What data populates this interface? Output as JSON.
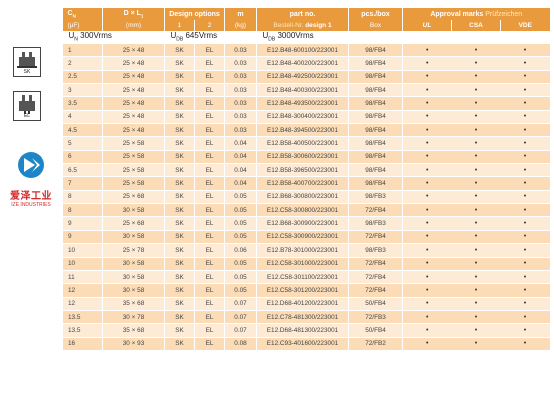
{
  "header": {
    "cn": "C",
    "cn_sub": "N",
    "cn_unit": "(μF)",
    "dl": "D × L",
    "dl_sub": "1",
    "dl_unit": "(mm)",
    "design_options": "Design options",
    "design_1": "1",
    "design_2": "2",
    "m": "m",
    "m_unit": "(kg)",
    "part_no": "part no.",
    "bestell": "Bestell-Nr.",
    "design_1_label": "design 1",
    "pcs_box": "pcs./box",
    "box": "Box",
    "approval": "Approval marks",
    "pruef": "Prüfzeichen",
    "mark1": "UL",
    "mark2": "CSA",
    "mark3": "VDE"
  },
  "voltage": {
    "un": "U",
    "un_sub": "N",
    "un_val": "300Vrms",
    "udb": "U",
    "udb_sub": "DB",
    "udb_val": "645Vrms",
    "udb2": "U",
    "udb2_sub": "DB",
    "udb2_val": "3000Vrms"
  },
  "rows": [
    {
      "cap": "1",
      "dim": "25 × 48",
      "d1": "SK",
      "d2": "EL",
      "m": "0.03",
      "pn": "E12.B48-600100/223001",
      "pcs": "98/FB4"
    },
    {
      "cap": "2",
      "dim": "25 × 48",
      "d1": "SK",
      "d2": "EL",
      "m": "0.03",
      "pn": "E12.B48-400200/223001",
      "pcs": "98/FB4"
    },
    {
      "cap": "2.5",
      "dim": "25 × 48",
      "d1": "SK",
      "d2": "EL",
      "m": "0.03",
      "pn": "E12.B48-492500/223001",
      "pcs": "98/FB4"
    },
    {
      "cap": "3",
      "dim": "25 × 48",
      "d1": "SK",
      "d2": "EL",
      "m": "0.03",
      "pn": "E12.B48-400300/223001",
      "pcs": "98/FB4"
    },
    {
      "cap": "3.5",
      "dim": "25 × 48",
      "d1": "SK",
      "d2": "EL",
      "m": "0.03",
      "pn": "E12.B48-493500/223001",
      "pcs": "98/FB4"
    },
    {
      "cap": "4",
      "dim": "25 × 48",
      "d1": "SK",
      "d2": "EL",
      "m": "0.03",
      "pn": "E12.B48-300400/223001",
      "pcs": "98/FB4"
    },
    {
      "cap": "4.5",
      "dim": "25 × 48",
      "d1": "SK",
      "d2": "EL",
      "m": "0.03",
      "pn": "E12.B48-394500/223001",
      "pcs": "98/FB4"
    },
    {
      "cap": "5",
      "dim": "25 × 58",
      "d1": "SK",
      "d2": "EL",
      "m": "0.04",
      "pn": "E12.B58-400500/223001",
      "pcs": "98/FB4"
    },
    {
      "cap": "6",
      "dim": "25 × 58",
      "d1": "SK",
      "d2": "EL",
      "m": "0.04",
      "pn": "E12.B58-300600/223001",
      "pcs": "98/FB4"
    },
    {
      "cap": "6.5",
      "dim": "25 × 58",
      "d1": "SK",
      "d2": "EL",
      "m": "0.04",
      "pn": "E12.B58-396500/223001",
      "pcs": "98/FB4"
    },
    {
      "cap": "7",
      "dim": "25 × 58",
      "d1": "SK",
      "d2": "EL",
      "m": "0.04",
      "pn": "E12.B58-400700/223001",
      "pcs": "98/FB4"
    },
    {
      "cap": "8",
      "dim": "25 × 68",
      "d1": "SK",
      "d2": "EL",
      "m": "0.05",
      "pn": "E12.B68-300800/223001",
      "pcs": "98/FB3"
    },
    {
      "cap": "8",
      "dim": "30 × 58",
      "d1": "SK",
      "d2": "EL",
      "m": "0.05",
      "pn": "E12.C58-300800/223001",
      "pcs": "72/FB4"
    },
    {
      "cap": "9",
      "dim": "25 × 68",
      "d1": "SK",
      "d2": "EL",
      "m": "0.05",
      "pn": "E12.B68-300900/223001",
      "pcs": "98/FB3"
    },
    {
      "cap": "9",
      "dim": "30 × 58",
      "d1": "SK",
      "d2": "EL",
      "m": "0.05",
      "pn": "E12.C58-300900/223001",
      "pcs": "72/FB4"
    },
    {
      "cap": "10",
      "dim": "25 × 78",
      "d1": "SK",
      "d2": "EL",
      "m": "0.06",
      "pn": "E12.B78-301000/223001",
      "pcs": "98/FB3"
    },
    {
      "cap": "10",
      "dim": "30 × 58",
      "d1": "SK",
      "d2": "EL",
      "m": "0.05",
      "pn": "E12.C58-301000/223001",
      "pcs": "72/FB4"
    },
    {
      "cap": "11",
      "dim": "30 × 58",
      "d1": "SK",
      "d2": "EL",
      "m": "0.05",
      "pn": "E12.C58-301100/223001",
      "pcs": "72/FB4"
    },
    {
      "cap": "12",
      "dim": "30 × 58",
      "d1": "SK",
      "d2": "EL",
      "m": "0.05",
      "pn": "E12.C58-301200/223001",
      "pcs": "72/FB4"
    },
    {
      "cap": "12",
      "dim": "35 × 68",
      "d1": "SK",
      "d2": "EL",
      "m": "0.07",
      "pn": "E12.D68-401200/223001",
      "pcs": "50/FB4"
    },
    {
      "cap": "13.5",
      "dim": "30 × 78",
      "d1": "SK",
      "d2": "EL",
      "m": "0.07",
      "pn": "E12.C78-481300/223001",
      "pcs": "72/FB3"
    },
    {
      "cap": "13.5",
      "dim": "35 × 68",
      "d1": "SK",
      "d2": "EL",
      "m": "0.07",
      "pn": "E12.D68-481300/223001",
      "pcs": "50/FB4"
    },
    {
      "cap": "16",
      "dim": "30 × 93",
      "d1": "SK",
      "d2": "EL",
      "m": "0.08",
      "pn": "E12.C93-401600/223001",
      "pcs": "72/FB2"
    }
  ],
  "dot": "•",
  "sidebar": {
    "sk_label": "SK",
    "el_label": "EL",
    "logo_cn": "爱泽工业",
    "logo_en": "IZE INDUSTRIES"
  },
  "colors": {
    "header_orange": "#e99a3c",
    "row_odd": "#fbdcb6",
    "row_even": "#fdebd6",
    "logo_blue": "#1d86c8",
    "logo_red": "#d42a2a"
  }
}
